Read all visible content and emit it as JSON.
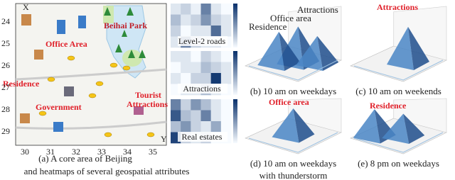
{
  "map": {
    "y_axis_label": "X",
    "x_axis_label": "Y",
    "y_ticks": [
      "24",
      "25",
      "26",
      "27",
      "28",
      "29"
    ],
    "x_ticks": [
      "30",
      "31",
      "32",
      "33",
      "34",
      "35"
    ],
    "labels": {
      "park": "Beihai Park",
      "office": "Office Area",
      "residence": "Residence",
      "government": "Government",
      "tourist": [
        "Tourist",
        "Attractions"
      ]
    }
  },
  "heatmaps": [
    {
      "label": "Level-2 roads",
      "values": [
        [
          0.1,
          0.2,
          0.05,
          0.6,
          0.1,
          0.0
        ],
        [
          0.3,
          0.1,
          0.2,
          0.5,
          0.2,
          0.1
        ],
        [
          0.2,
          0.0,
          0.1,
          0.1,
          0.7,
          0.1
        ],
        [
          0.1,
          0.6,
          0.2,
          0.1,
          0.1,
          0.0
        ]
      ]
    },
    {
      "label": "Attractions",
      "values": [
        [
          0.1,
          0.1,
          0.0,
          0.2,
          0.1,
          0.0
        ],
        [
          0.0,
          0.1,
          0.1,
          0.3,
          0.2,
          0.1
        ],
        [
          0.1,
          0.0,
          0.2,
          0.2,
          0.95,
          0.1
        ],
        [
          0.0,
          0.1,
          0.1,
          0.3,
          0.1,
          0.0
        ]
      ]
    },
    {
      "label": "Real estates",
      "values": [
        [
          0.6,
          0.2,
          0.5,
          0.3,
          0.1,
          0.0
        ],
        [
          0.8,
          0.3,
          0.2,
          0.6,
          0.1,
          0.0
        ],
        [
          0.3,
          0.5,
          0.2,
          0.1,
          0.4,
          0.0
        ],
        [
          0.9,
          0.2,
          0.1,
          0.2,
          0.0,
          0.0
        ]
      ]
    }
  ],
  "caption_a": [
    "(a) A core area of Beijing",
    "and heatmaps of several geospatial attributes"
  ],
  "plots": [
    {
      "caption": [
        "(b) 10 am on weekdays"
      ],
      "annotations": [
        "Attractions",
        "Office area",
        "Residence"
      ]
    },
    {
      "caption": [
        "(c) 10 am on weekends"
      ],
      "annotations": [
        "Attractions"
      ]
    },
    {
      "caption": [
        "(d) 10 am on weekdays",
        "with thunderstorm"
      ],
      "annotations": [
        "Office area"
      ]
    },
    {
      "caption": [
        "(e) 8 pm on weekdays"
      ],
      "annotations": [
        "Residence"
      ]
    }
  ]
}
